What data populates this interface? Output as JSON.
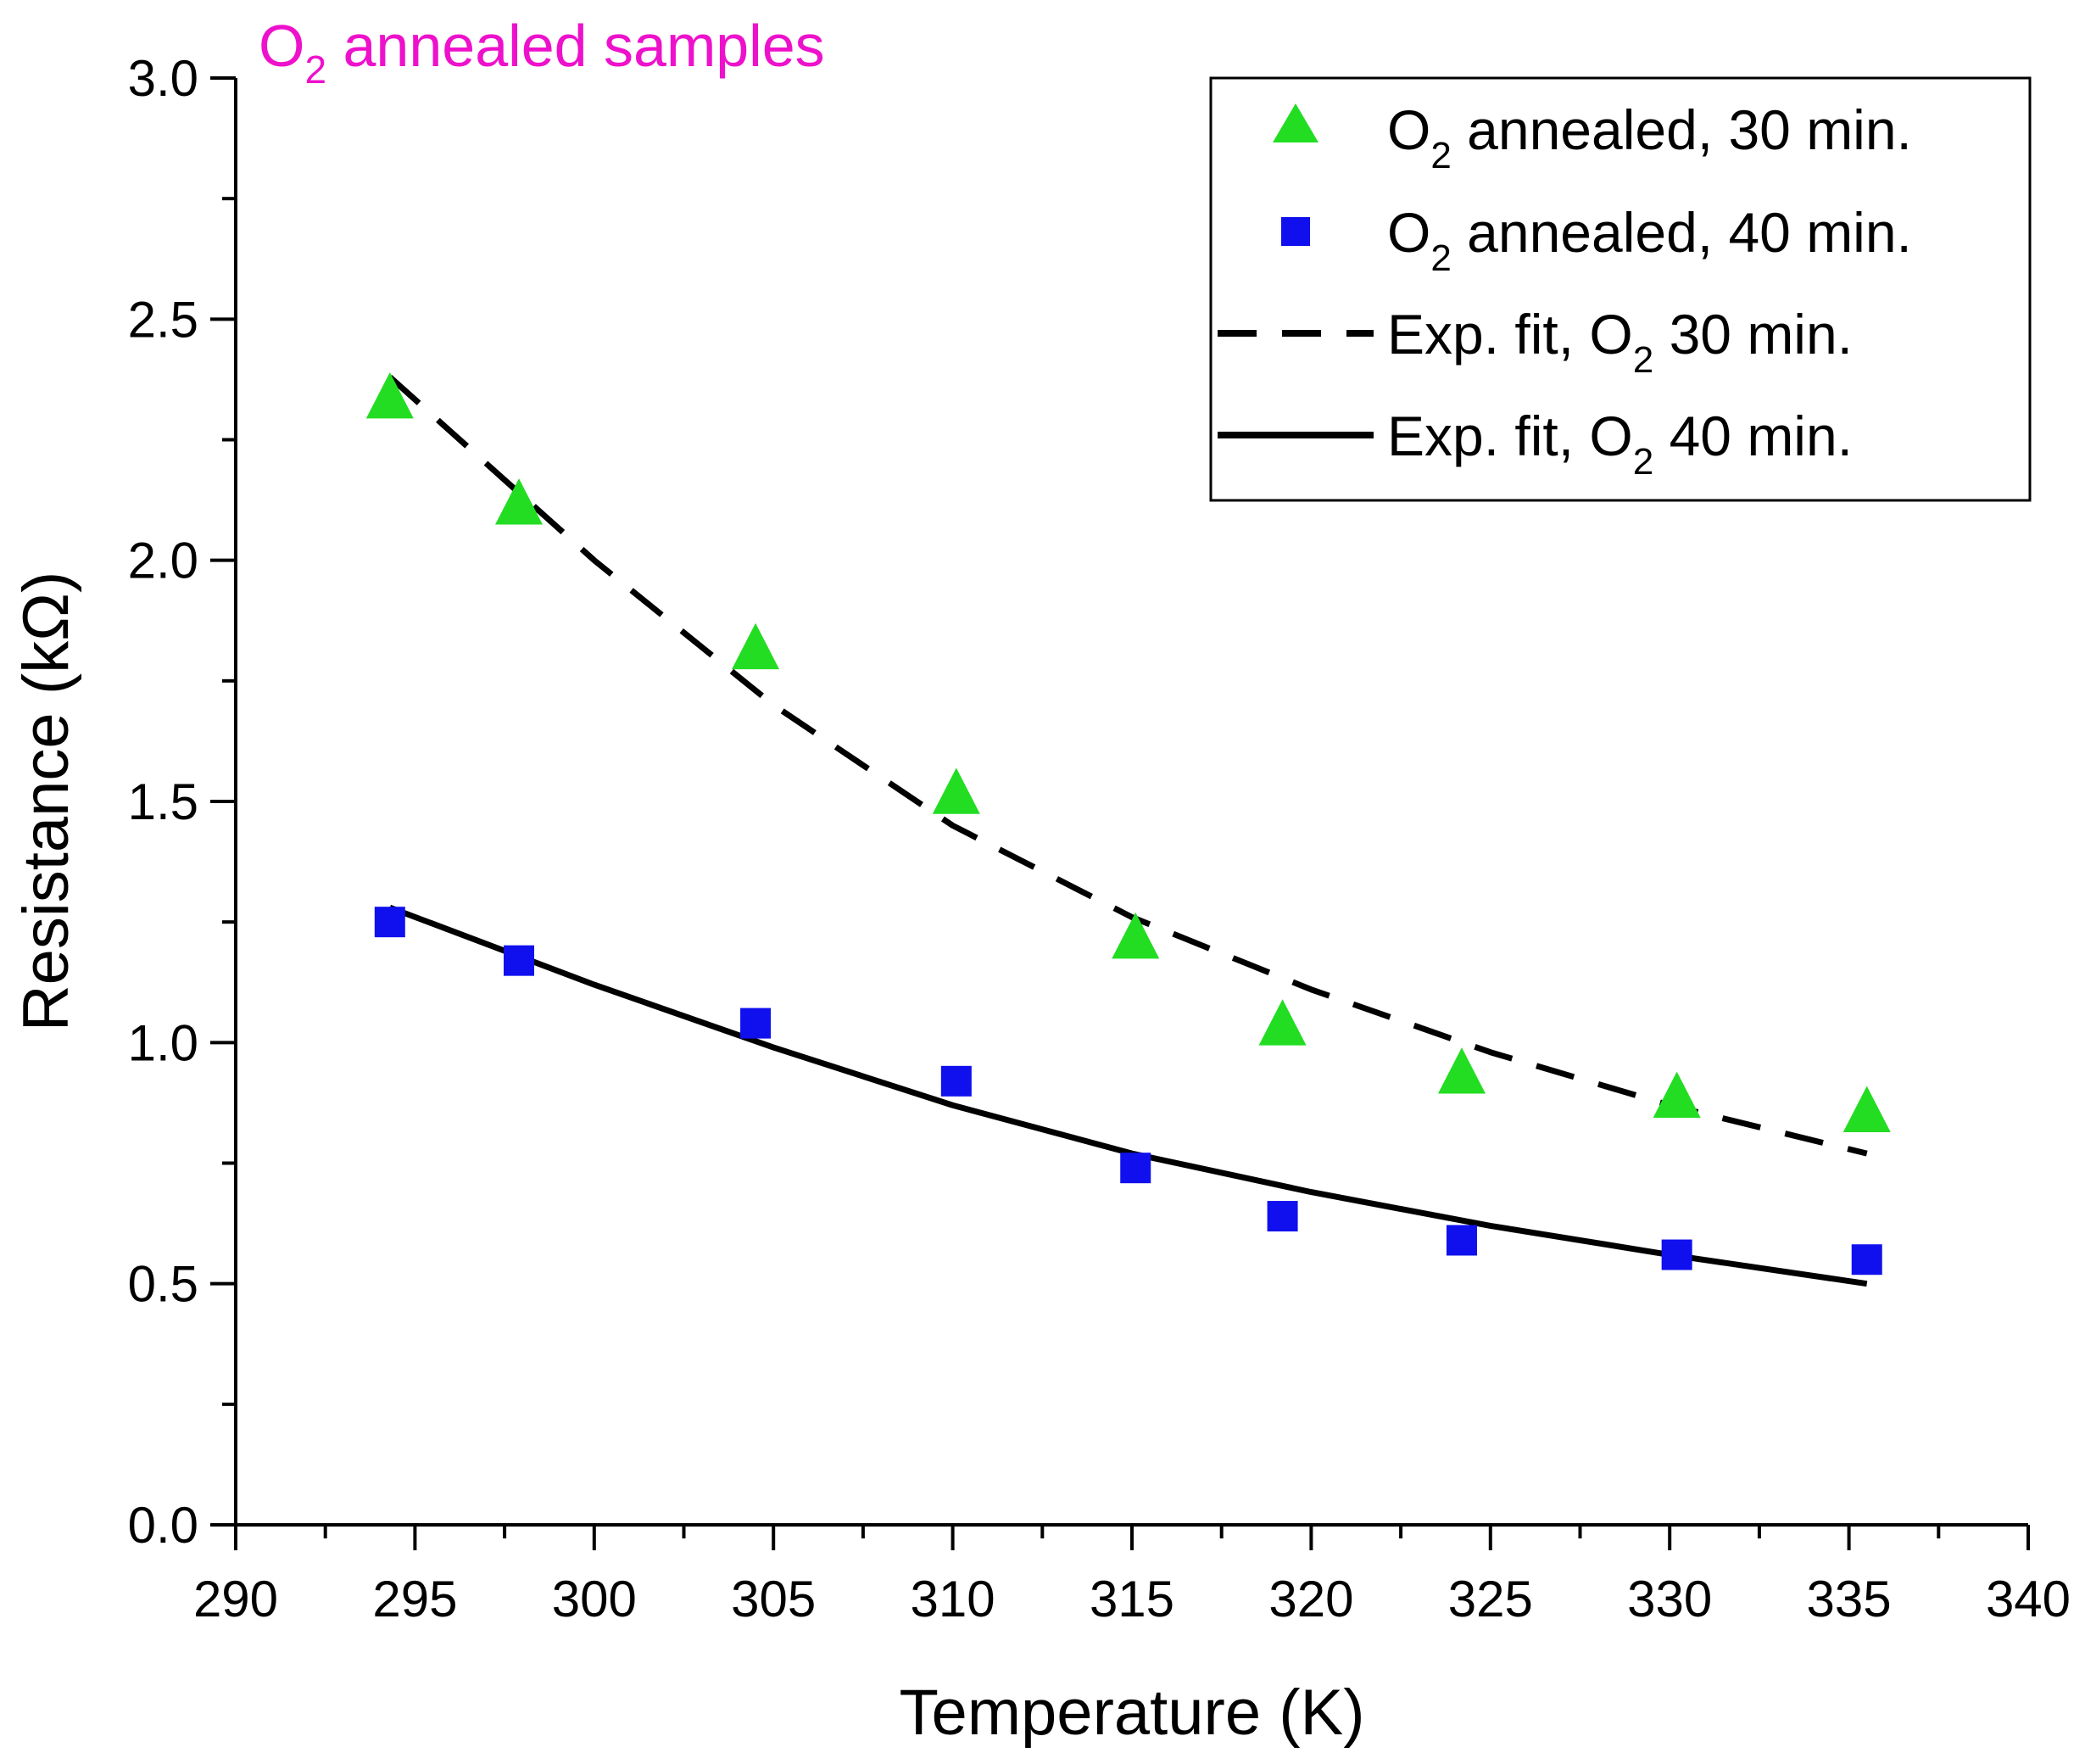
{
  "chart_data": {
    "type": "scatter",
    "title": "",
    "annotation": {
      "text": "O",
      "sub": "2",
      "rest": " annealed samples",
      "color": "#ee11cc"
    },
    "xlabel": "Temperature (K)",
    "ylabel": "Resistance (kΩ)",
    "xlim": [
      290,
      340
    ],
    "ylim": [
      0,
      3.0
    ],
    "xticks": [
      290,
      295,
      300,
      305,
      310,
      315,
      320,
      325,
      330,
      335,
      340
    ],
    "yticks": [
      "0.0",
      "0.5",
      "1.0",
      "1.5",
      "2.0",
      "2.5",
      "3.0"
    ],
    "ytick_values": [
      0,
      0.5,
      1.0,
      1.5,
      2.0,
      2.5,
      3.0
    ],
    "grid": false,
    "legend_position": "top-right",
    "series": [
      {
        "name": "O2 annealed, 30 min.",
        "legend": {
          "pre": "O",
          "sub": "2",
          "post": " annealed, 30 min."
        },
        "kind": "scatter",
        "marker": "triangle",
        "color": "#22dd22",
        "x": [
          294.3,
          297.9,
          304.5,
          310.1,
          315.1,
          319.2,
          324.2,
          330.2,
          335.5
        ],
        "y": [
          2.33,
          2.11,
          1.81,
          1.51,
          1.21,
          1.03,
          0.93,
          0.88,
          0.85
        ]
      },
      {
        "name": "O2 annealed, 40 min.",
        "legend": {
          "pre": "O",
          "sub": "2",
          "post": " annealed, 40 min."
        },
        "kind": "scatter",
        "marker": "square",
        "color": "#1010ee",
        "x": [
          294.3,
          297.9,
          304.5,
          310.1,
          315.1,
          319.2,
          324.2,
          330.2,
          335.5
        ],
        "y": [
          1.25,
          1.17,
          1.04,
          0.92,
          0.74,
          0.64,
          0.59,
          0.56,
          0.55
        ]
      },
      {
        "name": "Exp. fit, O2 30 min.",
        "legend": {
          "pre": "Exp. fit, O",
          "sub": "2",
          "post": " 30 min."
        },
        "kind": "line",
        "dash": true,
        "color": "#000000",
        "x": [
          294.3,
          300,
          305,
          310,
          315,
          320,
          325,
          330,
          335.5
        ],
        "y": [
          2.38,
          2.0,
          1.7,
          1.45,
          1.26,
          1.11,
          0.98,
          0.87,
          0.77
        ]
      },
      {
        "name": "Exp. fit, O2 40 min.",
        "legend": {
          "pre": "Exp. fit, O",
          "sub": "2",
          "post": " 40 min."
        },
        "kind": "line",
        "dash": false,
        "color": "#000000",
        "x": [
          294.3,
          300,
          305,
          310,
          315,
          320,
          325,
          330,
          335.5
        ],
        "y": [
          1.28,
          1.12,
          0.99,
          0.87,
          0.77,
          0.69,
          0.62,
          0.56,
          0.5
        ]
      }
    ]
  }
}
